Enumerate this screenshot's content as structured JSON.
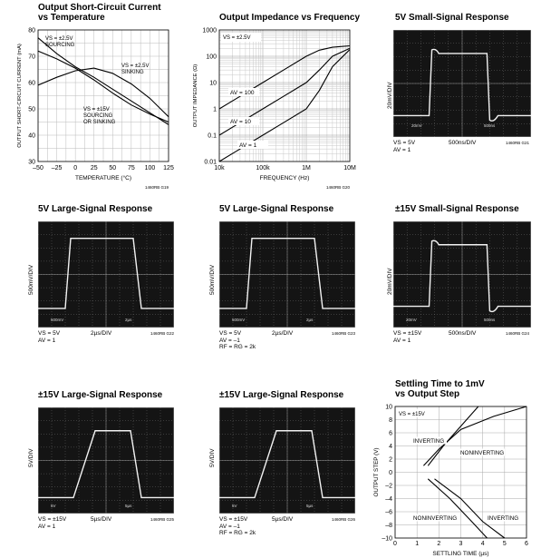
{
  "chart_data": [
    {
      "id": "short_circuit",
      "type": "line",
      "title": "Output Short-Circuit Current vs Temperature",
      "title_lines": [
        "Output Short-Circuit Current",
        "vs Temperature"
      ],
      "xlabel": "TEMPERATURE (°C)",
      "ylabel": "OUTPUT SHORT-CIRCUIT CURRENT (mA)",
      "xlim": [
        -50,
        125
      ],
      "ylim": [
        30,
        80
      ],
      "xticks": [
        "-50",
        "-25",
        "0",
        "25",
        "50",
        "75",
        "100",
        "125"
      ],
      "yticks": [
        "30",
        "40",
        "50",
        "60",
        "70",
        "80"
      ],
      "grid": true,
      "code": "1460RB G19",
      "series": [
        {
          "label_lines": [
            "VS = ±2.5V",
            "SOURCING"
          ],
          "x": [
            -50,
            -25,
            0,
            25,
            50,
            75,
            100,
            125
          ],
          "y": [
            77,
            71,
            66,
            62,
            57.5,
            53,
            48.5,
            44
          ]
        },
        {
          "label_lines": [
            "VS = ±2.5V",
            "SINKING"
          ],
          "x": [
            -50,
            -25,
            0,
            25,
            50,
            75,
            100,
            125
          ],
          "y": [
            59,
            62,
            64.5,
            65.5,
            63.5,
            59.5,
            54,
            47
          ]
        },
        {
          "label_lines": [
            "VS = ±15V",
            "SOURCING",
            "OR SINKING"
          ],
          "x": [
            -50,
            -25,
            0,
            25,
            50,
            75,
            100,
            125
          ],
          "y": [
            72,
            69,
            65.5,
            61,
            56,
            51.5,
            48,
            45
          ]
        }
      ]
    },
    {
      "id": "impedance",
      "type": "line",
      "title": "Output Impedance vs Frequency",
      "xlabel": "FREQUENCY (Hz)",
      "ylabel": "OUTPUT IMPEDANCE (Ω)",
      "xscale": "log",
      "yscale": "log",
      "xlim": [
        10000,
        10000000
      ],
      "ylim": [
        0.01,
        1000
      ],
      "xticks": [
        "10k",
        "100k",
        "1M",
        "10M"
      ],
      "yticks": [
        "0.01",
        "0.1",
        "1",
        "10",
        "100",
        "1000"
      ],
      "grid": true,
      "condition": "VS = ±2.5V",
      "code": "1460RB G20",
      "series": [
        {
          "label": "AV = 100",
          "x": [
            10000,
            30000,
            100000,
            300000,
            1000000,
            2000000,
            4000000,
            10000000
          ],
          "y": [
            1,
            3,
            10,
            30,
            100,
            170,
            220,
            250
          ]
        },
        {
          "label": "AV = 10",
          "x": [
            10000,
            30000,
            100000,
            300000,
            1000000,
            2000000,
            4000000,
            10000000
          ],
          "y": [
            0.1,
            0.3,
            1,
            3,
            10,
            30,
            100,
            200
          ]
        },
        {
          "label": "AV = 1",
          "x": [
            10000,
            30000,
            100000,
            300000,
            1000000,
            2000000,
            4000000,
            10000000
          ],
          "y": [
            0.01,
            0.03,
            0.1,
            0.3,
            1,
            5,
            40,
            180
          ]
        }
      ]
    },
    {
      "id": "settling",
      "type": "line",
      "title": "Settling Time to 1mV vs Output Step",
      "title_lines": [
        "Settling Time to 1mV",
        "vs Output Step"
      ],
      "xlabel": "SETTLING TIME (µs)",
      "ylabel": "OUTPUT STEP (V)",
      "xlim": [
        0,
        6
      ],
      "ylim": [
        -10,
        10
      ],
      "xticks": [
        "0",
        "1",
        "2",
        "3",
        "4",
        "5",
        "6"
      ],
      "yticks": [
        "-10",
        "-8",
        "-6",
        "-4",
        "-2",
        "0",
        "2",
        "4",
        "6",
        "8",
        "10"
      ],
      "grid": true,
      "condition": "VS = ±15V",
      "series": [
        {
          "label": "INVERTING",
          "x": [
            1.5,
            2.2,
            3.0,
            3.8
          ],
          "y": [
            1,
            4,
            7,
            10
          ]
        },
        {
          "label": "NONINVERTING",
          "x": [
            1.3,
            2.0,
            3.0,
            4.5,
            6.0
          ],
          "y": [
            1,
            3.5,
            6.5,
            8.5,
            10
          ]
        },
        {
          "label": "NONINVERTING",
          "x": [
            1.5,
            2.5,
            3.5,
            4.2
          ],
          "y": [
            -1,
            -4,
            -7.5,
            -10
          ]
        },
        {
          "label": "INVERTING",
          "x": [
            1.8,
            3.0,
            4.0,
            5.0
          ],
          "y": [
            -1,
            -4,
            -7.5,
            -10
          ]
        }
      ]
    }
  ],
  "scopes": [
    {
      "id": "s5v_small",
      "title": "5V Small-Signal Response",
      "ylabel": "20mV/DIV",
      "top_left": "20mV",
      "top_right": "500ns",
      "notes": [
        "VS = 5V",
        "AV = 1"
      ],
      "time": "500ns/DIV",
      "code": "1460RB G21"
    },
    {
      "id": "s5v_large",
      "title": "5V Large-Signal Response",
      "ylabel": "500mV/DIV",
      "bottom_left": "500mV",
      "bottom_right": "2µs",
      "notes": [
        "VS = 5V",
        "AV = 1"
      ],
      "time": "2µs/DIV",
      "code": "1460RB G22"
    },
    {
      "id": "s5v_large_inv",
      "title": "5V Large-Signal Response",
      "ylabel": "500mV/DIV",
      "bottom_left": "500mV",
      "bottom_right": "2µs",
      "notes": [
        "VS = 5V",
        "AV = –1",
        "RF = RG = 2k"
      ],
      "time": "2µs/DIV",
      "code": "1460RB G23"
    },
    {
      "id": "s15v_small",
      "title": "±15V Small-Signal Response",
      "ylabel": "20mV/DIV",
      "bottom_left": "20mV",
      "bottom_right": "500ns",
      "notes": [
        "VS = ±15V",
        "AV = 1"
      ],
      "time": "500ns/DIV",
      "code": "1460RB G24"
    },
    {
      "id": "s15v_large",
      "title": "±15V Large-Signal Response",
      "ylabel": "5V/DIV",
      "bottom_left": "5V",
      "bottom_right": "5µs",
      "notes": [
        "VS = ±15V",
        "AV = 1"
      ],
      "time": "5µs/DIV",
      "code": "1460RB G25"
    },
    {
      "id": "s15v_large_inv",
      "title": "±15V Large-Signal Response",
      "ylabel": "5V/DIV",
      "bottom_left": "5V",
      "bottom_right": "5µs",
      "notes": [
        "VS = ±15V",
        "AV = –1",
        "RF = RG = 2k"
      ],
      "time": "5µs/DIV",
      "code": "1460RB G26"
    }
  ]
}
